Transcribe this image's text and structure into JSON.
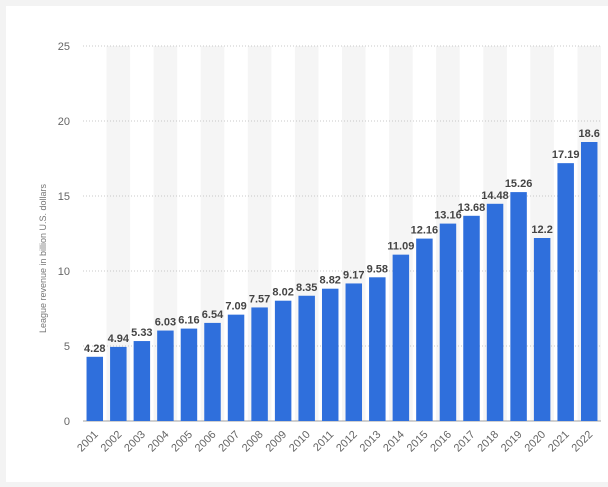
{
  "chart_data": {
    "type": "bar",
    "title": "",
    "xlabel": "",
    "ylabel": "League revenue in billion U.S. dollars",
    "ylim": [
      0,
      25
    ],
    "yticks": [
      0,
      5,
      10,
      15,
      20,
      25
    ],
    "grid": true,
    "categories": [
      "2001",
      "2002",
      "2003",
      "2004",
      "2005",
      "2006",
      "2007",
      "2008",
      "2009",
      "2010",
      "2011",
      "2012",
      "2013",
      "2014",
      "2015",
      "2016",
      "2017",
      "2018",
      "2019",
      "2020",
      "2021",
      "2022"
    ],
    "values": [
      4.28,
      4.94,
      5.33,
      6.03,
      6.16,
      6.54,
      7.09,
      7.57,
      8.02,
      8.35,
      8.82,
      9.17,
      9.58,
      11.09,
      12.16,
      13.16,
      13.68,
      14.48,
      15.26,
      12.2,
      17.19,
      18.6
    ],
    "labels": [
      "4.28",
      "4.94",
      "5.33",
      "6.03",
      "6.16",
      "6.54",
      "7.09",
      "7.57",
      "8.02",
      "8.35",
      "8.82",
      "9.17",
      "9.58",
      "11.09",
      "12.16",
      "13.16",
      "13.68",
      "14.48",
      "15.26",
      "12.2",
      "17.19",
      "18.6"
    ],
    "colors": {
      "bar": "#2f6fdc",
      "band": "#f5f5f5",
      "grid": "#c8c8c8",
      "baseline": "#a0a0a0"
    }
  }
}
